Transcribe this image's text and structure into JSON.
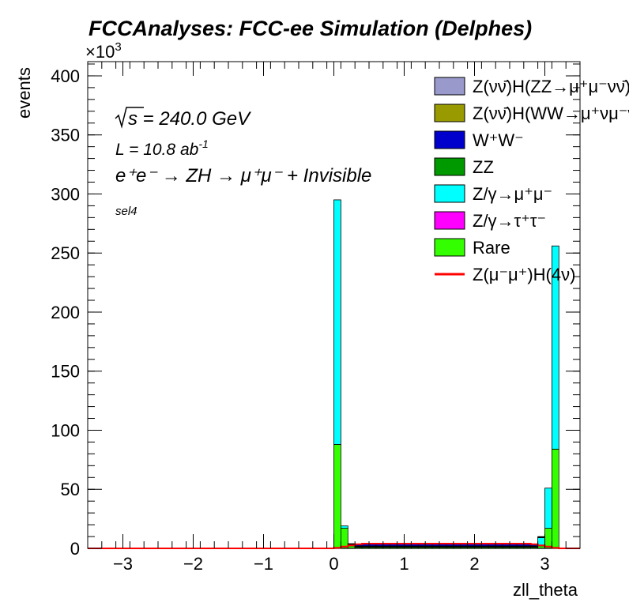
{
  "chart_data": {
    "type": "bar",
    "title": "FCCAnalyses: FCC-ee Simulation (Delphes)",
    "xlabel": "zll_theta",
    "ylabel": "events",
    "y_multiplier": "×10",
    "y_multiplier_exp": "3",
    "xlim": [
      -3.5,
      3.5
    ],
    "ylim": [
      0,
      412
    ],
    "x_ticks": [
      -3,
      -2,
      -1,
      0,
      1,
      2,
      3
    ],
    "x_tick_labels": [
      "−3",
      "−2",
      "−1",
      "0",
      "1",
      "2",
      "3"
    ],
    "y_ticks": [
      0,
      50,
      100,
      150,
      200,
      250,
      300,
      350,
      400
    ],
    "y_tick_labels": [
      "0",
      "50",
      "100",
      "150",
      "200",
      "250",
      "300",
      "350",
      "400"
    ],
    "grid": false,
    "legend_position": "top-right",
    "annotations": {
      "sqrt_s": "s",
      "energy": " = 240.0 GeV",
      "lumi_prefix": "L = 10.8 ab",
      "lumi_exp": "-1",
      "process": "e⁺e⁻ → ZH → μ⁺μ⁻ + Invisible",
      "selection": "sel4"
    },
    "bin_edges": [
      0.0,
      0.1,
      0.2,
      0.3,
      0.4,
      0.5,
      0.6,
      0.7,
      0.8,
      0.9,
      1.0,
      1.1,
      1.2,
      1.3,
      1.4,
      1.5,
      1.6,
      1.7,
      1.8,
      1.9,
      2.0,
      2.1,
      2.2,
      2.3,
      2.4,
      2.5,
      2.6,
      2.7,
      2.8,
      2.9,
      3.0,
      3.1,
      3.2
    ],
    "stack_series": [
      {
        "name": "Rare",
        "color": "#33ff00",
        "values": [
          88,
          17,
          2,
          1,
          1,
          1,
          1,
          1,
          1,
          1,
          1,
          1,
          1,
          1,
          1,
          1,
          1,
          1,
          1,
          1,
          1,
          1,
          1,
          1,
          1,
          1,
          1,
          1,
          1,
          2,
          17,
          84
        ]
      },
      {
        "name": "Z/γ→τ⁺τ⁻",
        "color": "#ff00ff",
        "values": [
          0,
          0,
          0,
          0,
          0,
          0,
          0,
          0,
          0,
          0,
          0,
          0,
          0,
          0,
          0,
          0,
          0,
          0,
          0,
          0,
          0,
          0,
          0,
          0,
          0,
          0,
          0,
          0,
          0,
          0,
          0,
          0
        ]
      },
      {
        "name": "Z/γ→μ⁺μ⁻",
        "color": "#00ffff",
        "values": [
          207,
          2,
          1,
          0.5,
          0.5,
          0.5,
          0.5,
          0.5,
          0.5,
          0.5,
          0.5,
          0.5,
          0.5,
          0.5,
          0.5,
          0.5,
          0.5,
          0.5,
          0.5,
          0.5,
          0.5,
          0.5,
          0.5,
          0.5,
          0.5,
          0.5,
          0.5,
          0.5,
          0.5,
          7,
          34,
          172
        ]
      },
      {
        "name": "ZZ",
        "color": "#009900",
        "values": [
          0,
          0,
          0.5,
          0.5,
          0.5,
          0.5,
          0.5,
          0.5,
          0.5,
          0.5,
          0.5,
          0.5,
          0.5,
          0.5,
          0.5,
          0.5,
          0.5,
          0.5,
          0.5,
          0.5,
          0.5,
          0.5,
          0.5,
          0.5,
          0.5,
          0.5,
          0.5,
          0.5,
          0.5,
          0.5,
          0,
          0
        ]
      },
      {
        "name": "W⁺W⁻",
        "color": "#0000cc",
        "values": [
          0,
          0,
          0.5,
          1.5,
          2,
          2,
          2,
          2,
          2,
          2,
          2,
          2,
          2,
          2,
          2,
          2,
          2,
          2,
          2,
          2,
          2,
          2,
          2,
          2,
          2,
          2,
          2,
          2,
          1.5,
          0.5,
          0,
          0
        ]
      },
      {
        "name": "Z(νν̄)H(WW→μ⁺νμ⁻ν̄)",
        "color": "#999900",
        "values": [
          0,
          0,
          0,
          0,
          0,
          0,
          0,
          0,
          0,
          0,
          0,
          0,
          0,
          0,
          0,
          0,
          0,
          0,
          0,
          0,
          0,
          0,
          0,
          0,
          0,
          0,
          0,
          0,
          0,
          0,
          0,
          0
        ]
      },
      {
        "name": "Z(νν̄)H(ZZ→μ⁺μ⁻νν̄)",
        "color": "#9999cc",
        "values": [
          0,
          0,
          0,
          0,
          0,
          0,
          0,
          0,
          0,
          0,
          0,
          0,
          0,
          0,
          0,
          0,
          0,
          0,
          0,
          0,
          0,
          0,
          0,
          0,
          0,
          0,
          0,
          0,
          0,
          0,
          0,
          0
        ]
      }
    ],
    "signal_line": {
      "name": "Z(μ⁻μ⁺)H(4ν)",
      "color": "#ff0000",
      "values": [
        0.5,
        1.5,
        2.5,
        3.5,
        4,
        4,
        4,
        4,
        4,
        4,
        4,
        4,
        4,
        4,
        4,
        4,
        4,
        4,
        4,
        4,
        4,
        4,
        4,
        4,
        4,
        4,
        4,
        4,
        3.5,
        2.5,
        1.5,
        0.5
      ]
    },
    "legend_entries": [
      {
        "label": "Z(νν̄)H(ZZ→μ⁺μ⁻νν̄)",
        "color": "#9999cc",
        "kind": "box"
      },
      {
        "label": "Z(νν̄)H(WW→μ⁺νμ⁻ν̄)",
        "color": "#999900",
        "kind": "box"
      },
      {
        "label": "W⁺W⁻",
        "color": "#0000cc",
        "kind": "box"
      },
      {
        "label": "ZZ",
        "color": "#009900",
        "kind": "box"
      },
      {
        "label": "Z/γ→μ⁺μ⁻",
        "color": "#00ffff",
        "kind": "box"
      },
      {
        "label": "Z/γ→τ⁺τ⁻",
        "color": "#ff00ff",
        "kind": "box"
      },
      {
        "label": "Rare",
        "color": "#33ff00",
        "kind": "box"
      },
      {
        "label": "Z(μ⁻μ⁺)H(4ν)",
        "color": "#ff0000",
        "kind": "line"
      }
    ]
  }
}
